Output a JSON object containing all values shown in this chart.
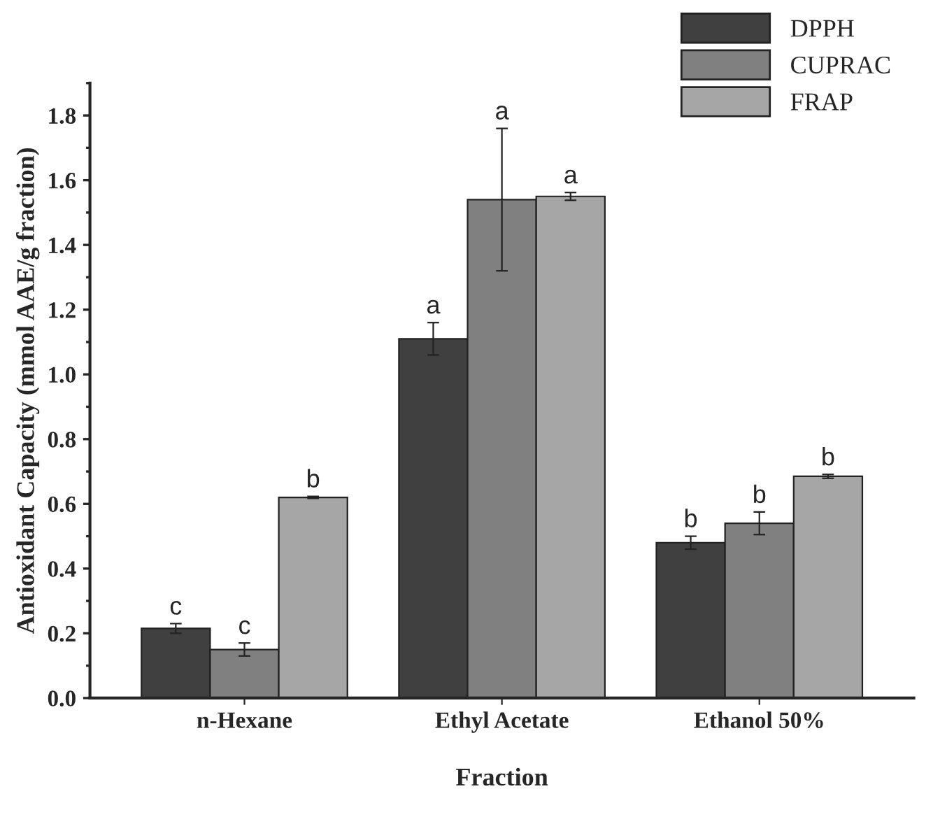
{
  "chart_data": {
    "type": "bar",
    "xlabel": "Fraction",
    "ylabel": "Antioxidant Capacity (mmol AAE/g fraction)",
    "categories": [
      "n-Hexane",
      "Ethyl Acetate",
      "Ethanol 50%"
    ],
    "series": [
      {
        "name": "DPPH",
        "color": "#404040",
        "values": [
          0.215,
          1.11,
          0.48
        ],
        "errors": [
          0.015,
          0.05,
          0.02
        ],
        "value_labels": [
          "c",
          "a",
          "b"
        ]
      },
      {
        "name": "CUPRAC",
        "color": "#808080",
        "values": [
          0.15,
          1.54,
          0.54
        ],
        "errors": [
          0.02,
          0.22,
          0.035
        ],
        "value_labels": [
          "c",
          "a",
          "b"
        ]
      },
      {
        "name": "FRAP",
        "color": "#a6a6a6",
        "values": [
          0.62,
          1.55,
          0.685
        ],
        "errors": [
          0.003,
          0.012,
          0.006
        ],
        "value_labels": [
          "b",
          "a",
          "b"
        ]
      }
    ],
    "ylim": [
      0,
      1.9
    ],
    "yticks": [
      {
        "value": 0,
        "label": "0.0"
      },
      {
        "value": 0.2,
        "label": "0.2"
      },
      {
        "value": 0.4,
        "label": "0.4"
      },
      {
        "value": 0.6,
        "label": "0.6"
      },
      {
        "value": 0.8,
        "label": "0.8"
      },
      {
        "value": 1.0,
        "label": "1.0"
      },
      {
        "value": 1.2,
        "label": "1.2"
      },
      {
        "value": 1.4,
        "label": "1.4"
      },
      {
        "value": 1.6,
        "label": "1.6"
      },
      {
        "value": 1.8,
        "label": "1.8"
      }
    ],
    "legend": "top right",
    "grid": false
  }
}
